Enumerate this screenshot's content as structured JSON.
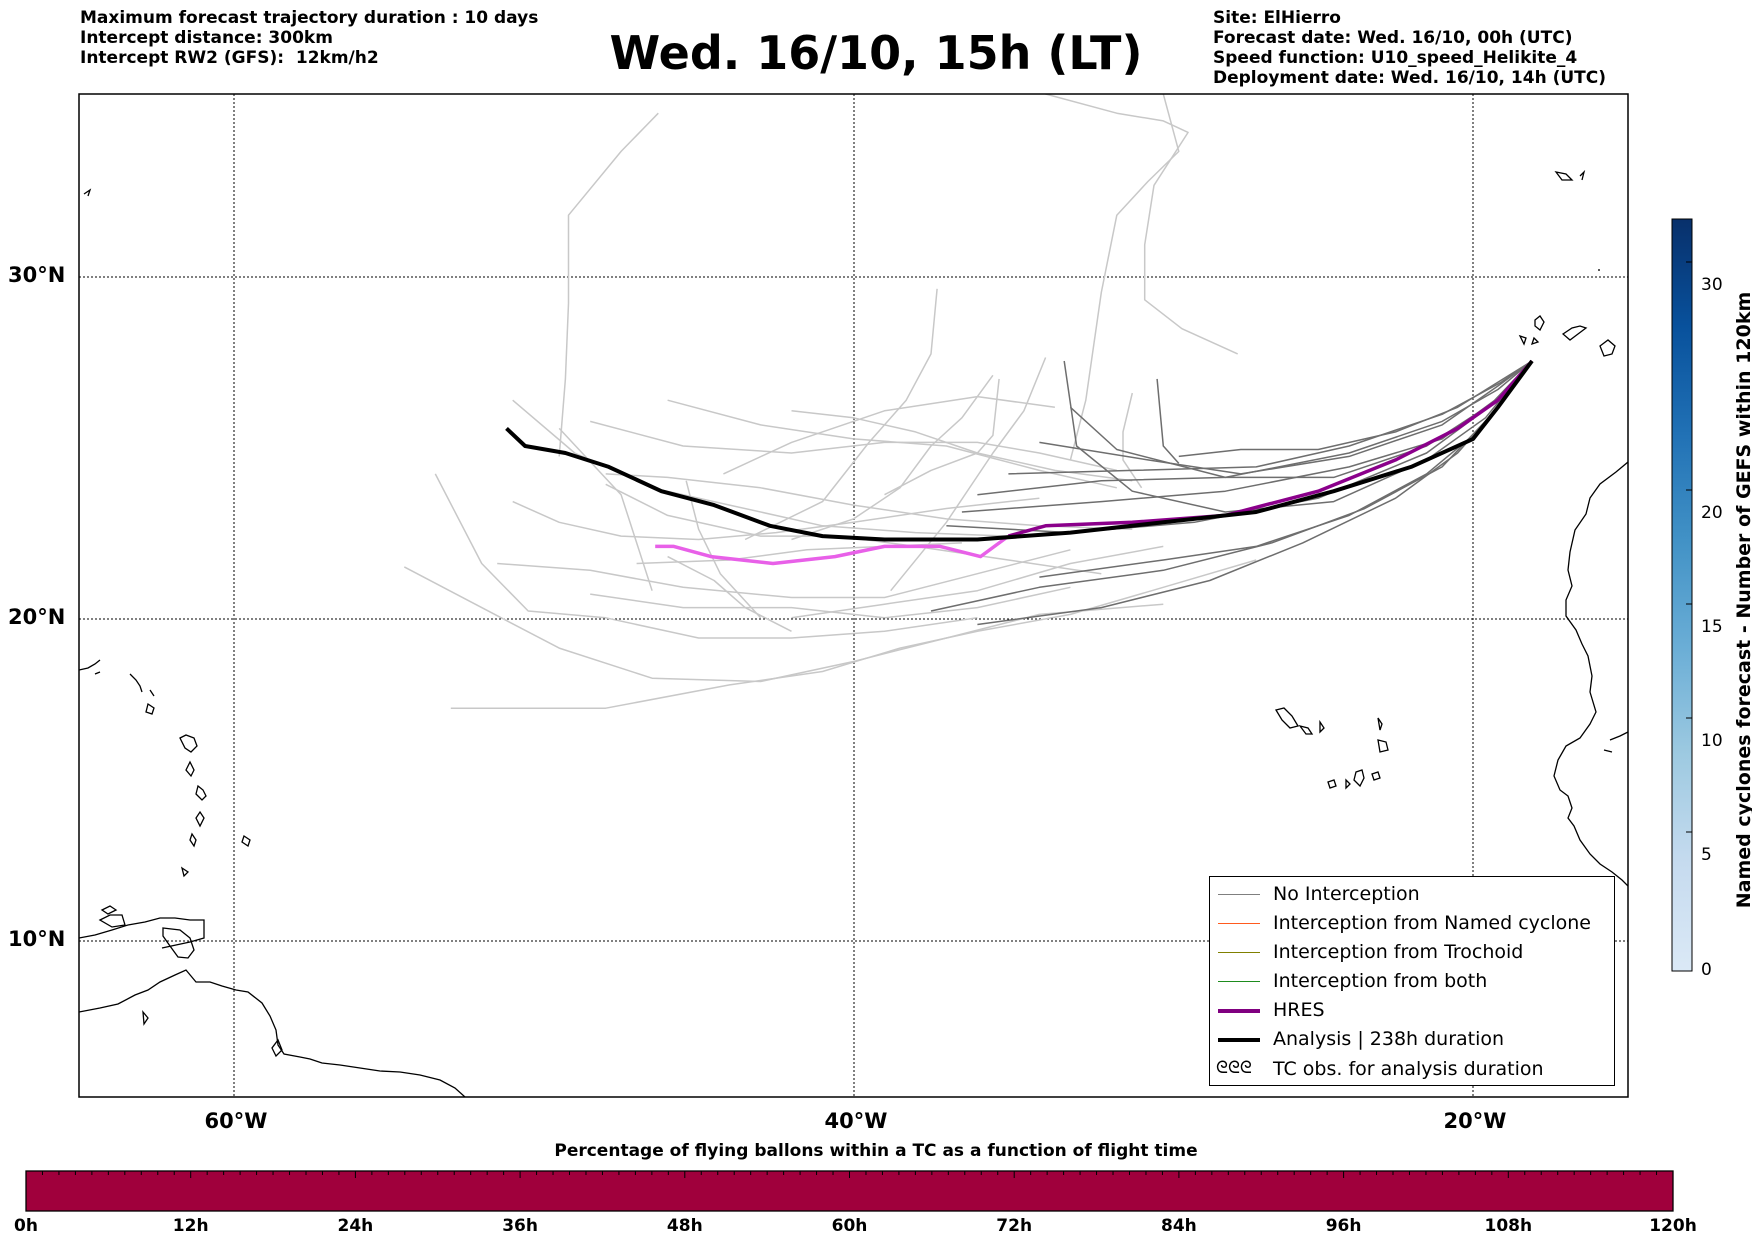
{
  "header": {
    "left_lines": [
      "Maximum forecast trajectory duration : 10 days",
      "Intercept distance: 300km",
      "Intercept RW2 (GFS):  12km/h2"
    ],
    "title": "Wed. 16/10, 15h (LT)",
    "right_lines": [
      "Site: ElHierro",
      "Forecast date: Wed. 16/10, 00h (UTC)",
      "Speed function: U10_speed_Helikite_4",
      "Deployment date: Wed. 16/10, 14h (UTC)"
    ]
  },
  "map": {
    "lat_labels": [
      "30°N",
      "20°N",
      "10°N"
    ],
    "lon_labels": [
      "60°W",
      "40°W",
      "20°W"
    ],
    "gridlines": "dotted",
    "extent": {
      "lon": [
        -65,
        -15
      ],
      "lat": [
        5.5,
        34.8
      ]
    }
  },
  "legend": {
    "items": [
      {
        "label": "No Interception",
        "color": "#7f7f7f",
        "style": "thin"
      },
      {
        "label": "Interception from Named cyclone",
        "color": "#ff5a1e",
        "style": "thin"
      },
      {
        "label": "Interception from Trochoid",
        "color": "#808000",
        "style": "thin"
      },
      {
        "label": "Interception from both",
        "color": "#1e8c1e",
        "style": "thin"
      },
      {
        "label": "HRES",
        "color": "#800080",
        "style": "thick"
      },
      {
        "label": "Analysis | 238h duration",
        "color": "#000000",
        "style": "thick"
      },
      {
        "label": "TC obs. for analysis duration",
        "color": "#000000",
        "style": "glyph",
        "glyph": "ᘓᘓᘓ"
      }
    ]
  },
  "colorbar": {
    "label": "Named cyclones forecast - Number of GEFS within 120km",
    "ticks": [
      "0",
      "5",
      "10",
      "15",
      "20",
      "30"
    ],
    "range": [
      0,
      33
    ],
    "colors": [
      "#dbe9f6",
      "#c6dbef",
      "#9ecae1",
      "#6baed6",
      "#4292c6",
      "#2171b5",
      "#08519c",
      "#08306b"
    ]
  },
  "ballon_bar": {
    "title": "Percentage of flying ballons within a TC as a function of flight time",
    "ticks": [
      "0h",
      "12h",
      "24h",
      "36h",
      "48h",
      "60h",
      "72h",
      "84h",
      "96h",
      "108h",
      "120h"
    ],
    "fill_color": "#a0003c"
  },
  "tracks": {
    "analysis": [
      [
        -51.2,
        25.7
      ],
      [
        -50.6,
        25.2
      ],
      [
        -49.3,
        25.0
      ],
      [
        -47.9,
        24.6
      ],
      [
        -46.2,
        23.9
      ],
      [
        -44.5,
        23.5
      ],
      [
        -42.7,
        22.9
      ],
      [
        -41,
        22.6
      ],
      [
        -39,
        22.5
      ],
      [
        -36,
        22.5
      ],
      [
        -33,
        22.7
      ],
      [
        -30,
        23
      ],
      [
        -27,
        23.3
      ],
      [
        -24.5,
        23.9
      ],
      [
        -22,
        24.6
      ],
      [
        -20,
        25.4
      ],
      [
        -19.2,
        26.3
      ],
      [
        -18.1,
        27.6
      ]
    ],
    "hres": [
      [
        -46.4,
        22.3
      ],
      [
        -45.8,
        22.3
      ],
      [
        -44.6,
        22.0
      ],
      [
        -42.6,
        21.8
      ],
      [
        -40.6,
        22.0
      ],
      [
        -39,
        22.3
      ],
      [
        -37.2,
        22.3
      ],
      [
        -35.9,
        22.0
      ],
      [
        -35,
        22.6
      ],
      [
        -33.8,
        22.9
      ],
      [
        -31,
        23
      ],
      [
        -28,
        23.2
      ],
      [
        -25,
        23.9
      ],
      [
        -22.5,
        24.8
      ],
      [
        -20.5,
        25.7
      ],
      [
        -19.2,
        26.5
      ],
      [
        -18.1,
        27.6
      ]
    ],
    "no_interception": [
      [
        [
          -37,
          22.9
        ],
        [
          -33,
          22.7
        ],
        [
          -29,
          23.0
        ],
        [
          -25,
          23.7
        ],
        [
          -21.5,
          25.0
        ],
        [
          -19.5,
          26.3
        ],
        [
          -18.1,
          27.6
        ]
      ],
      [
        [
          -36.5,
          23.3
        ],
        [
          -32,
          23.6
        ],
        [
          -28,
          23.9
        ],
        [
          -24,
          24.6
        ],
        [
          -21,
          25.4
        ],
        [
          -19.3,
          26.5
        ],
        [
          -18.1,
          27.6
        ]
      ],
      [
        [
          -36,
          23.8
        ],
        [
          -32,
          24.2
        ],
        [
          -28,
          24.3
        ],
        [
          -24,
          25.0
        ],
        [
          -21,
          25.9
        ],
        [
          -19.2,
          26.8
        ],
        [
          -18.1,
          27.6
        ]
      ],
      [
        [
          -35,
          24.4
        ],
        [
          -31,
          24.5
        ],
        [
          -27,
          24.6
        ],
        [
          -24,
          25.2
        ],
        [
          -21,
          26.1
        ],
        [
          -19.1,
          27.0
        ],
        [
          -18.1,
          27.6
        ]
      ],
      [
        [
          -34,
          25.3
        ],
        [
          -30.5,
          24.8
        ],
        [
          -27.5,
          24.4
        ],
        [
          -24,
          24.9
        ],
        [
          -21,
          25.8
        ],
        [
          -19.2,
          26.9
        ],
        [
          -18.1,
          27.6
        ]
      ],
      [
        [
          -33,
          26.3
        ],
        [
          -31.5,
          25.1
        ],
        [
          -28,
          24.3
        ],
        [
          -24.5,
          24.3
        ],
        [
          -21.5,
          25.2
        ],
        [
          -19.4,
          26.4
        ],
        [
          -18.1,
          27.6
        ]
      ],
      [
        [
          -33.2,
          27.6
        ],
        [
          -32.8,
          25.2
        ],
        [
          -31,
          23.9
        ],
        [
          -28,
          23.3
        ],
        [
          -24.5,
          23.6
        ],
        [
          -21.5,
          24.8
        ],
        [
          -19.6,
          26.0
        ],
        [
          -18.1,
          27.6
        ]
      ],
      [
        [
          -37.5,
          20.4
        ],
        [
          -34,
          21.1
        ],
        [
          -30,
          21.6
        ],
        [
          -26.5,
          22.4
        ],
        [
          -23.5,
          23.4
        ],
        [
          -21,
          24.6
        ],
        [
          -19.5,
          26.0
        ],
        [
          -18.1,
          27.6
        ]
      ],
      [
        [
          -36,
          20.0
        ],
        [
          -32,
          20.5
        ],
        [
          -28.5,
          21.3
        ],
        [
          -25.5,
          22.4
        ],
        [
          -22.5,
          23.7
        ],
        [
          -20.5,
          25.0
        ],
        [
          -19.2,
          26.3
        ],
        [
          -18.1,
          27.6
        ]
      ],
      [
        [
          -34,
          21.4
        ],
        [
          -30,
          21.9
        ],
        [
          -27,
          22.3
        ],
        [
          -24,
          23.2
        ],
        [
          -21.5,
          24.4
        ],
        [
          -19.6,
          25.8
        ],
        [
          -18.1,
          27.6
        ]
      ],
      [
        [
          -29.5,
          24.7
        ],
        [
          -30,
          25.2
        ],
        [
          -30.2,
          27.1
        ]
      ],
      [
        [
          -29.5,
          24.9
        ],
        [
          -27.5,
          25.1
        ],
        [
          -25,
          25.1
        ],
        [
          -22.5,
          25.6
        ],
        [
          -20.5,
          26.3
        ],
        [
          -18.1,
          27.6
        ]
      ]
    ],
    "other": [
      [
        [
          -53,
          17.5
        ],
        [
          -48,
          17.5
        ],
        [
          -44,
          18.2
        ],
        [
          -41,
          18.6
        ],
        [
          -38.5,
          19.3
        ],
        [
          -36,
          19.8
        ],
        [
          -33,
          20.3
        ],
        [
          -30,
          21.1
        ],
        [
          -27,
          21.9
        ]
      ],
      [
        [
          -54.5,
          21.7
        ],
        [
          -52,
          20.5
        ],
        [
          -49.5,
          19.3
        ],
        [
          -46.5,
          18.4
        ],
        [
          -43,
          18.3
        ],
        [
          -40,
          18.9
        ],
        [
          -37,
          19.6
        ],
        [
          -34,
          20.3
        ],
        [
          -30,
          20.6
        ]
      ],
      [
        [
          -53.5,
          24.4
        ],
        [
          -52,
          21.8
        ],
        [
          -50.5,
          20.4
        ],
        [
          -48,
          20.2
        ],
        [
          -45,
          19.6
        ],
        [
          -42,
          19.6
        ],
        [
          -39,
          19.8
        ],
        [
          -36,
          20.2
        ]
      ],
      [
        [
          -51.5,
          21.8
        ],
        [
          -48.5,
          21.6
        ],
        [
          -45.5,
          21.1
        ],
        [
          -42,
          20.8
        ],
        [
          -39,
          20.8
        ],
        [
          -36,
          21.5
        ],
        [
          -33,
          22.2
        ]
      ],
      [
        [
          -48.5,
          20.9
        ],
        [
          -45.5,
          20.5
        ],
        [
          -42,
          20.5
        ],
        [
          -39,
          20.2
        ],
        [
          -36,
          20.5
        ],
        [
          -33,
          21.1
        ]
      ],
      [
        [
          -51,
          26.5
        ],
        [
          -49,
          25.0
        ],
        [
          -46.5,
          24.0
        ],
        [
          -44,
          23.5
        ],
        [
          -41,
          22.9
        ],
        [
          -38,
          22.7
        ],
        [
          -35,
          22.6
        ]
      ],
      [
        [
          -48.5,
          25.9
        ],
        [
          -45.5,
          25.2
        ],
        [
          -42,
          25.0
        ],
        [
          -39,
          25.3
        ],
        [
          -36,
          25.3
        ],
        [
          -34,
          25.0
        ],
        [
          -31.5,
          24.5
        ]
      ],
      [
        [
          -49.5,
          25.7
        ],
        [
          -47.5,
          23.8
        ],
        [
          -46.5,
          21.0
        ]
      ],
      [
        [
          -46,
          26.5
        ],
        [
          -43,
          25.8
        ],
        [
          -40,
          25.4
        ],
        [
          -37,
          25.2
        ],
        [
          -34,
          24.5
        ],
        [
          -31.5,
          24.0
        ]
      ],
      [
        [
          -48,
          24.1
        ],
        [
          -46,
          23.2
        ],
        [
          -43,
          22.6
        ],
        [
          -40.5,
          22.6
        ],
        [
          -38,
          22.3
        ],
        [
          -35,
          21.9
        ],
        [
          -32,
          21.5
        ]
      ],
      [
        [
          -47,
          21.8
        ],
        [
          -44,
          21.9
        ],
        [
          -41.5,
          22.2
        ],
        [
          -39,
          22.3
        ],
        [
          -36.5,
          22.4
        ]
      ],
      [
        [
          -46,
          22.0
        ],
        [
          -44.5,
          21.3
        ],
        [
          -43.5,
          20.5
        ],
        [
          -42,
          19.8
        ]
      ],
      [
        [
          -45.4,
          24.2
        ],
        [
          -45,
          22.8
        ],
        [
          -44.3,
          21.5
        ],
        [
          -43,
          20.2
        ]
      ],
      [
        [
          -48,
          24.4
        ],
        [
          -46,
          24.3
        ],
        [
          -43,
          24.0
        ],
        [
          -40,
          23.5
        ],
        [
          -37,
          23.1
        ],
        [
          -34,
          22.9
        ],
        [
          -31,
          22.8
        ]
      ],
      [
        [
          -51,
          23.6
        ],
        [
          -49.5,
          23.0
        ],
        [
          -47.5,
          22.6
        ],
        [
          -45,
          22.5
        ],
        [
          -42.5,
          22.7
        ],
        [
          -40,
          23.0
        ],
        [
          -37,
          23.4
        ],
        [
          -34,
          23.7
        ]
      ],
      [
        [
          -42,
          26.2
        ],
        [
          -40,
          26.0
        ],
        [
          -38,
          25.6
        ],
        [
          -36,
          25.0
        ],
        [
          -33.5,
          24.5
        ],
        [
          -31,
          24.2
        ]
      ],
      [
        [
          -44.2,
          24.4
        ],
        [
          -42,
          25.3
        ],
        [
          -39,
          26.2
        ],
        [
          -36,
          26.6
        ],
        [
          -33.5,
          26.3
        ]
      ],
      [
        [
          -43.5,
          22.5
        ],
        [
          -41,
          23.6
        ],
        [
          -39.5,
          25.3
        ],
        [
          -38.3,
          26.5
        ],
        [
          -37.5,
          27.8
        ],
        [
          -37.3,
          29.6
        ]
      ],
      [
        [
          -42,
          22.5
        ],
        [
          -40,
          23.1
        ],
        [
          -38.5,
          24.0
        ],
        [
          -37.5,
          25.2
        ],
        [
          -36.5,
          26.0
        ],
        [
          -35.5,
          27.2
        ]
      ],
      [
        [
          -49.5,
          24.9
        ],
        [
          -49.3,
          27.1
        ],
        [
          -49.2,
          29.2
        ],
        [
          -49.2,
          31.6
        ],
        [
          -47.5,
          33.3
        ],
        [
          -46.3,
          34.3
        ]
      ],
      [
        [
          -39,
          23.8
        ],
        [
          -37.5,
          24.5
        ],
        [
          -36,
          25.0
        ],
        [
          -35.5,
          25.5
        ],
        [
          -35.3,
          27.1
        ]
      ],
      [
        [
          -38.8,
          21.0
        ],
        [
          -37,
          23.0
        ],
        [
          -35.5,
          25.0
        ],
        [
          -34.5,
          26.2
        ],
        [
          -33.8,
          27.7
        ]
      ],
      [
        [
          -31,
          26.7
        ],
        [
          -31.3,
          25.6
        ],
        [
          -31.3,
          24.8
        ],
        [
          -30.7,
          24.0
        ]
      ],
      [
        [
          -42,
          20.2
        ],
        [
          -39,
          20.6
        ],
        [
          -36,
          21.0
        ],
        [
          -33,
          21.8
        ],
        [
          -30,
          22.3
        ]
      ],
      [
        [
          -33,
          24.8
        ],
        [
          -32.5,
          26.5
        ],
        [
          -32,
          29.5
        ],
        [
          -31.5,
          31.6
        ],
        [
          -30.5,
          32.5
        ],
        [
          -29.5,
          33.3
        ],
        [
          -30,
          34.8
        ]
      ],
      [
        [
          -33.8,
          34.8
        ],
        [
          -31.5,
          34.3
        ],
        [
          -30,
          34.1
        ],
        [
          -29.2,
          33.8
        ],
        [
          -30.3,
          32.4
        ],
        [
          -30.6,
          30.8
        ],
        [
          -30.6,
          29.3
        ],
        [
          -29.4,
          28.5
        ],
        [
          -27.6,
          27.8
        ]
      ]
    ]
  }
}
